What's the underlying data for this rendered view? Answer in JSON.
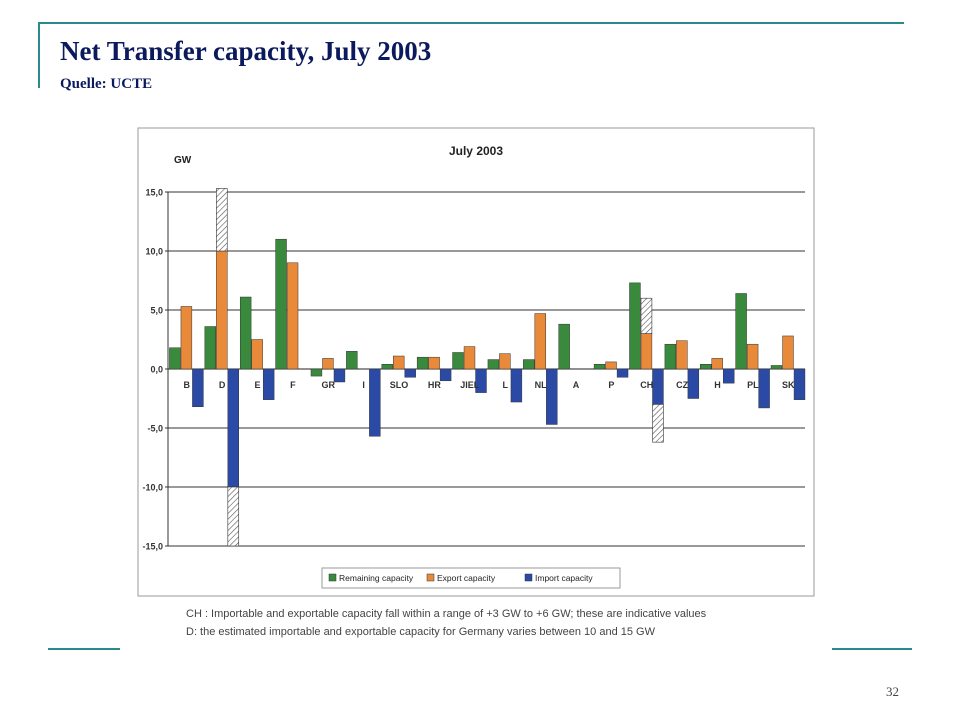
{
  "slide": {
    "title": "Net Transfer capacity, July 2003",
    "subtitle": "Quelle: UCTE",
    "page_number": "32",
    "notes": [
      "CH : Importable and exportable capacity fall within a range of +3 GW to +6 GW; these are indicative values",
      "D: the estimated importable and exportable capacity for Germany varies between 10 and 15 GW"
    ]
  },
  "chart_data": {
    "type": "bar",
    "title": "July 2003",
    "ylabel": "GW",
    "xlabel": "",
    "ylim": [
      -15,
      15
    ],
    "yticks": [
      15,
      10,
      5,
      0,
      -5,
      -10,
      -15
    ],
    "ytick_labels": [
      "15,0",
      "10,0",
      "5,0",
      "0,0",
      "-5,0",
      "-10,0",
      "-15,0"
    ],
    "categories": [
      "B",
      "D",
      "E",
      "F",
      "GR",
      "I",
      "SLO",
      "HR",
      "JIEL",
      "L",
      "NL",
      "A",
      "P",
      "CH",
      "CZ",
      "H",
      "PL",
      "SK"
    ],
    "series": [
      {
        "name": "Remaining capacity",
        "color": "#3a8a3e",
        "values": [
          1.8,
          3.6,
          6.1,
          11.0,
          -0.6,
          1.5,
          0.4,
          1.0,
          1.4,
          0.8,
          0.8,
          3.8,
          0.4,
          7.3,
          2.1,
          0.4,
          6.4,
          0.3
        ]
      },
      {
        "name": "Export capacity",
        "color": "#e88a3a",
        "values": [
          5.3,
          10.0,
          2.5,
          9.0,
          0.9,
          0.0,
          1.1,
          1.0,
          1.9,
          1.3,
          4.7,
          0.0,
          0.6,
          3.0,
          2.4,
          0.9,
          2.1,
          2.8
        ]
      },
      {
        "name": "Import capacity",
        "color": "#2b4aa6",
        "values": [
          -3.2,
          -10.0,
          -2.6,
          0.0,
          -1.1,
          -5.7,
          -0.7,
          -1.0,
          -2.0,
          -2.8,
          -4.7,
          0.0,
          -0.7,
          -3.0,
          -2.5,
          -1.2,
          -3.3,
          -2.6
        ]
      }
    ],
    "ranges": [
      {
        "category": "D",
        "series": "Export capacity",
        "from": 10,
        "to": 15.3
      },
      {
        "category": "D",
        "series": "Import capacity",
        "from": -10,
        "to": -15
      },
      {
        "category": "CH",
        "series": "Export capacity",
        "from": 3,
        "to": 6
      },
      {
        "category": "CH",
        "series": "Import capacity",
        "from": -3,
        "to": -6.2
      }
    ],
    "grid": true,
    "legend_position": "bottom"
  }
}
